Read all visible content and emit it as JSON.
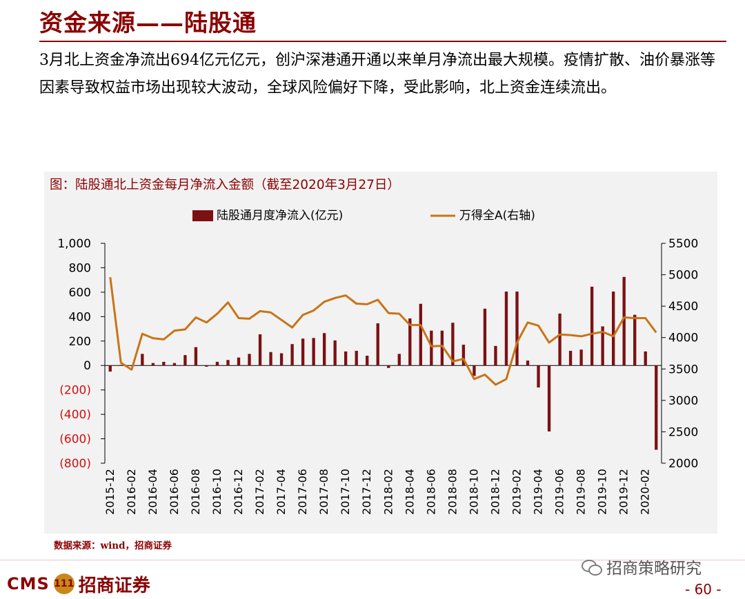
{
  "header": {
    "title": "资金来源——陆股通",
    "lead": "3月北上资金净流出694亿元亿元，创沪深港通开通以来单月净流出最大规模。疫情扩散、油价暴涨等因素导致权益市场出现较大波动，全球风险偏好下降，受此影响，北上资金连续流出。"
  },
  "chart_data": {
    "type": "bar",
    "title": "图：陆股通北上资金每月净流入金额（截至2020年3月27日）",
    "categories": [
      "2015-12",
      "2016-01",
      "2016-02",
      "2016-03",
      "2016-04",
      "2016-05",
      "2016-06",
      "2016-07",
      "2016-08",
      "2016-09",
      "2016-10",
      "2016-11",
      "2016-12",
      "2017-01",
      "2017-02",
      "2017-03",
      "2017-04",
      "2017-05",
      "2017-06",
      "2017-07",
      "2017-08",
      "2017-09",
      "2017-10",
      "2017-11",
      "2017-12",
      "2018-01",
      "2018-02",
      "2018-03",
      "2018-04",
      "2018-05",
      "2018-06",
      "2018-07",
      "2018-08",
      "2018-09",
      "2018-10",
      "2018-11",
      "2018-12",
      "2019-01",
      "2019-02",
      "2019-03",
      "2019-04",
      "2019-05",
      "2019-06",
      "2019-07",
      "2019-08",
      "2019-09",
      "2019-10",
      "2019-11",
      "2019-12",
      "2020-01",
      "2020-02",
      "2020-03"
    ],
    "x_tick_labels": [
      "2015-12",
      "2016-02",
      "2016-04",
      "2016-06",
      "2016-08",
      "2016-10",
      "2016-12",
      "2017-02",
      "2017-04",
      "2017-06",
      "2017-08",
      "2017-10",
      "2017-12",
      "2018-02",
      "2018-04",
      "2018-06",
      "2018-08",
      "2018-10",
      "2018-12",
      "2019-02",
      "2019-04",
      "2019-06",
      "2019-08",
      "2019-10",
      "2019-12",
      "2020-02"
    ],
    "series": [
      {
        "name": "陆股通月度净流入(亿元)",
        "axis": "left",
        "kind": "bar",
        "color": "#7b1113",
        "values": [
          -50,
          5,
          -5,
          95,
          20,
          30,
          20,
          85,
          150,
          -10,
          30,
          45,
          65,
          95,
          255,
          110,
          100,
          175,
          220,
          225,
          265,
          205,
          115,
          120,
          80,
          345,
          -20,
          95,
          385,
          505,
          285,
          285,
          350,
          170,
          -85,
          465,
          160,
          605,
          605,
          40,
          -180,
          -540,
          425,
          120,
          130,
          645,
          320,
          605,
          725,
          415,
          115,
          -690
        ]
      },
      {
        "name": "万得全A(右轴)",
        "axis": "right",
        "kind": "line",
        "color": "#c97316",
        "values": [
          4960,
          3600,
          3490,
          4060,
          3990,
          3970,
          4110,
          4130,
          4320,
          4240,
          4380,
          4560,
          4310,
          4300,
          4420,
          4400,
          4280,
          4160,
          4360,
          4430,
          4570,
          4630,
          4670,
          4540,
          4530,
          4600,
          4390,
          4380,
          4200,
          4200,
          3860,
          3870,
          3620,
          3660,
          3340,
          3410,
          3250,
          3340,
          3920,
          4240,
          4190,
          3920,
          4050,
          4040,
          4020,
          4060,
          4090,
          4020,
          4320,
          4310,
          4310,
          4080
        ]
      }
    ],
    "y_left": {
      "min": -800,
      "max": 1000,
      "ticks": [
        "(800)",
        "(600)",
        "(400)",
        "(200)",
        "0",
        "200",
        "400",
        "600",
        "800",
        "1,000"
      ]
    },
    "y_right": {
      "min": 2000,
      "max": 5500,
      "ticks": [
        "2000",
        "2500",
        "3000",
        "3500",
        "4000",
        "4500",
        "5000",
        "5500"
      ]
    },
    "legend": "top-center",
    "grid": false
  },
  "source": "数据来源：wind，招商证券",
  "footer": {
    "logo_text": "CMS",
    "logo_emblem": "111",
    "logo_name": "招商证券",
    "watermark": "招商策略研究",
    "page": "- 60 -"
  }
}
